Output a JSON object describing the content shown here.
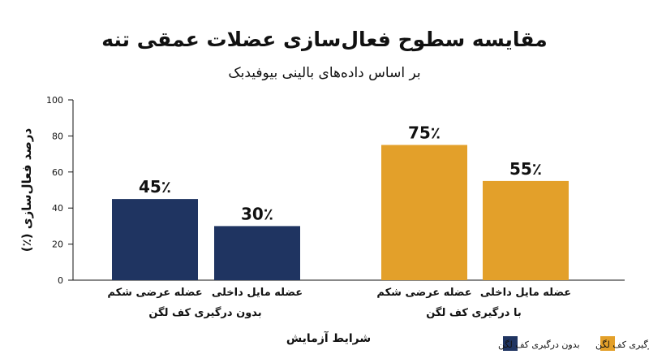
{
  "chart_data": {
    "type": "bar",
    "title": "مقایسه سطوح فعال‌سازی عضلات عمقی تنه",
    "subtitle": "بر اساس داده‌های بالینی بیوفیدبک",
    "ylabel": "درصد فعال‌سازی (٪)",
    "xlabel": "شرایط آزمایش",
    "ylim": [
      0,
      100
    ],
    "yticks": [
      "0",
      "20",
      "40",
      "60",
      "80",
      "100"
    ],
    "groups": [
      {
        "name": "بدون درگیری کف لگن",
        "color": "#1f3461",
        "bars": [
          {
            "category": "عضله عرضی شکم",
            "value": 45,
            "label": "45٪"
          },
          {
            "category": "عضله مایل داخلی",
            "value": 30,
            "label": "30٪"
          }
        ]
      },
      {
        "name": "با درگیری کف لگن",
        "color": "#e3a02a",
        "bars": [
          {
            "category": "عضله عرضی شکم",
            "value": 75,
            "label": "75٪"
          },
          {
            "category": "عضله مایل داخلی",
            "value": 55,
            "label": "55٪"
          }
        ]
      }
    ],
    "legend": {
      "placement": "bottom-right",
      "items": [
        {
          "label": "بدون درگیری کف لگن",
          "color": "#1f3461"
        },
        {
          "label": "با درگیری کف لگن",
          "color": "#e3a02a"
        }
      ]
    },
    "grid": false
  }
}
